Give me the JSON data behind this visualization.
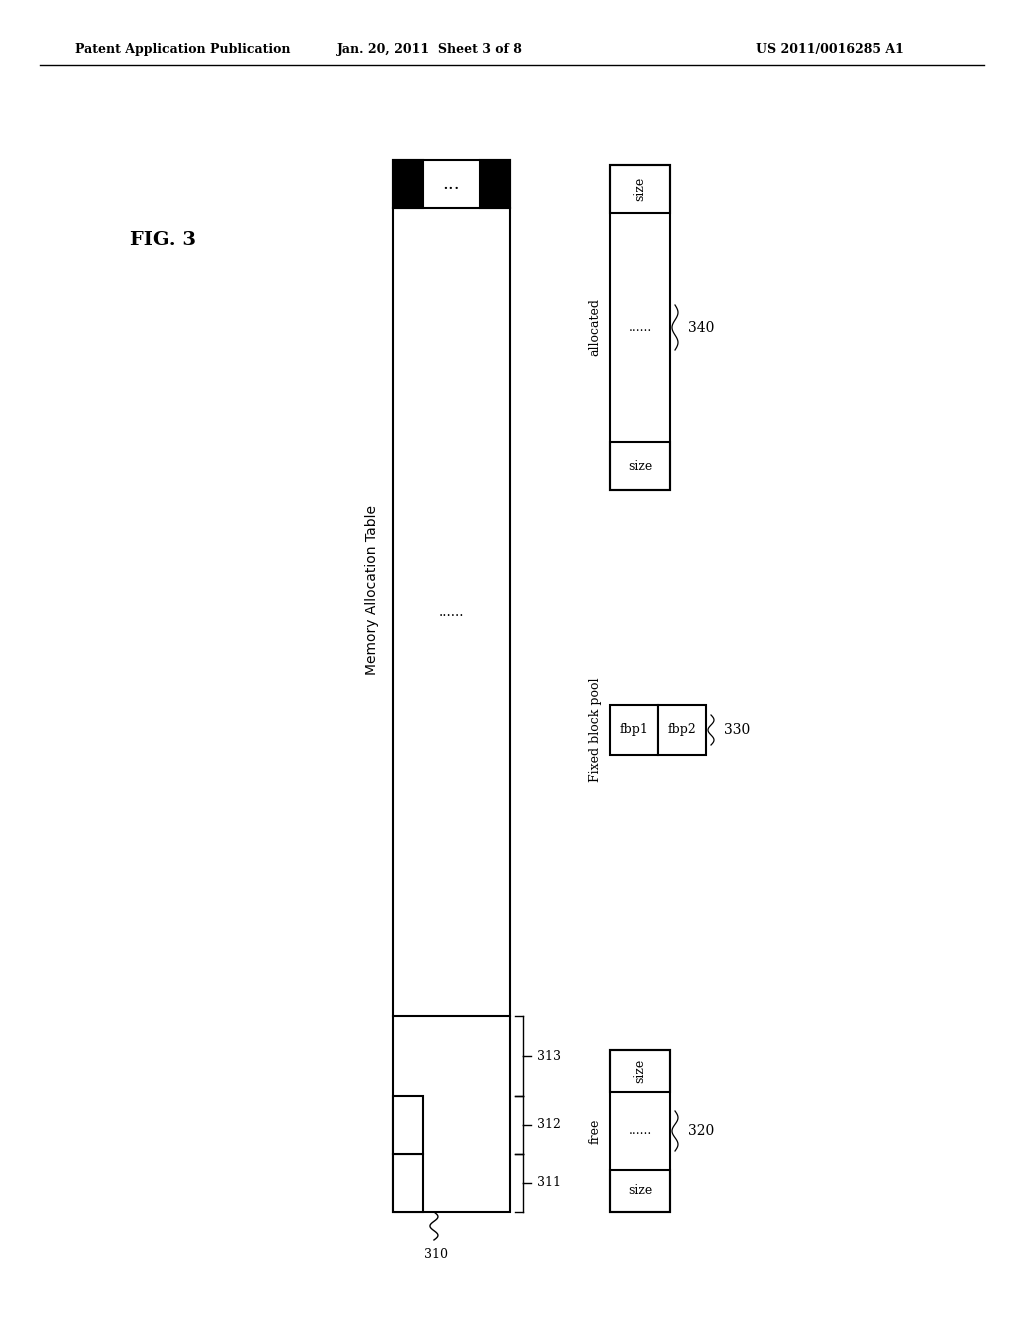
{
  "bg_color": "#ffffff",
  "header_text_left": "Patent Application Publication",
  "header_text_mid": "Jan. 20, 2011  Sheet 3 of 8",
  "header_text_right": "US 2011/0016285 A1",
  "fig_label": "FIG. 3",
  "main_table_label": "Memory Allocation Table",
  "dots_text": "......",
  "label_310": "310",
  "label_311": "311",
  "label_312": "312",
  "label_313": "313",
  "label_320": "320",
  "label_330": "330",
  "label_340": "340",
  "free_label": "free",
  "fbp_label": "Fixed block pool",
  "allocated_label": "allocated",
  "fbp1_text": "fbp1",
  "fbp2_text": "fbp2",
  "size_text": "size",
  "free_dots": "......",
  "alloc_dots": "......"
}
